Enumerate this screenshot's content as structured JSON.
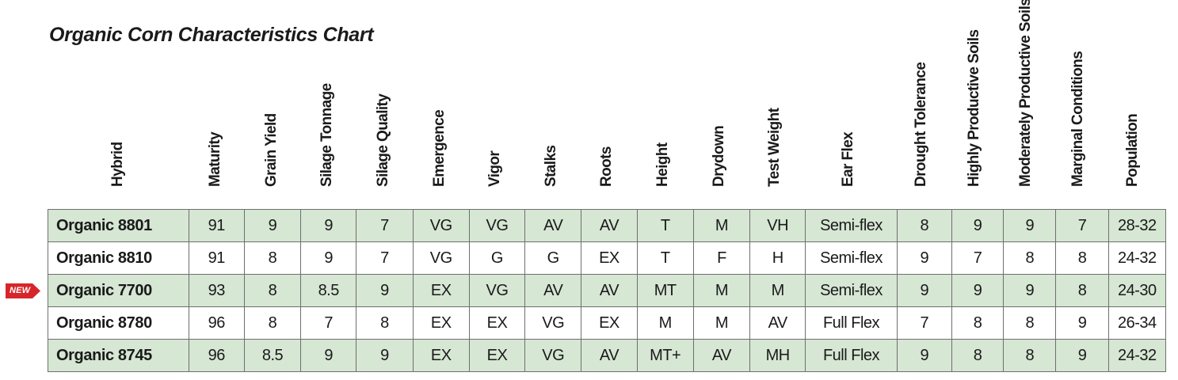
{
  "title": "Organic Corn Characteristics Chart",
  "columns": [
    "Hybrid",
    "Maturity",
    "Grain Yield",
    "Silage Tonnage",
    "Silage Quality",
    "Emergence",
    "Vigor",
    "Stalks",
    "Roots",
    "Height",
    "Drydown",
    "Test Weight",
    "Ear Flex",
    "Drought Tolerance",
    "Highly Productive Soils",
    "Moderately Productive Soils",
    "Marginal Conditions",
    "Population"
  ],
  "new_badge": "NEW",
  "badge_color": "#d6262b",
  "row_shading": "#d6e7d4",
  "rows": [
    [
      "Organic 8801",
      "91",
      "9",
      "9",
      "7",
      "VG",
      "VG",
      "AV",
      "AV",
      "T",
      "M",
      "VH",
      "Semi-flex",
      "8",
      "9",
      "9",
      "7",
      "28-32"
    ],
    [
      "Organic 8810",
      "91",
      "8",
      "9",
      "7",
      "VG",
      "G",
      "G",
      "EX",
      "T",
      "F",
      "H",
      "Semi-flex",
      "9",
      "7",
      "8",
      "8",
      "24-32"
    ],
    [
      "Organic 7700",
      "93",
      "8",
      "8.5",
      "9",
      "EX",
      "VG",
      "AV",
      "AV",
      "MT",
      "M",
      "M",
      "Semi-flex",
      "9",
      "9",
      "9",
      "8",
      "24-30"
    ],
    [
      "Organic 8780",
      "96",
      "8",
      "7",
      "8",
      "EX",
      "EX",
      "VG",
      "EX",
      "M",
      "M",
      "AV",
      "Full Flex",
      "7",
      "8",
      "8",
      "9",
      "26-34"
    ],
    [
      "Organic 8745",
      "96",
      "8.5",
      "9",
      "9",
      "EX",
      "EX",
      "VG",
      "AV",
      "MT+",
      "AV",
      "MH",
      "Full Flex",
      "9",
      "8",
      "8",
      "9",
      "24-32"
    ]
  ]
}
